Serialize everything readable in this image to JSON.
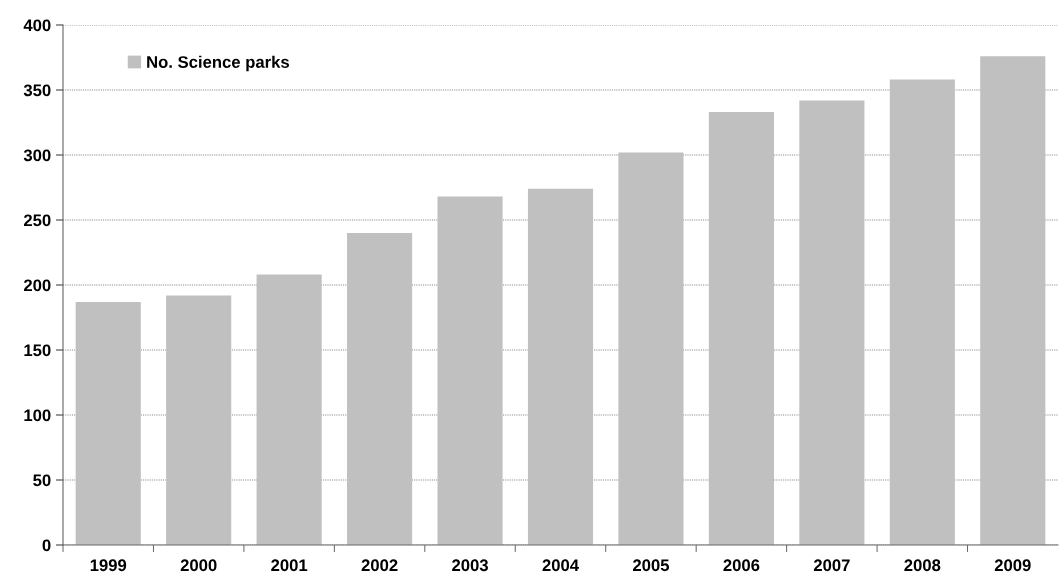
{
  "chart_data": {
    "type": "bar",
    "categories": [
      "1999",
      "2000",
      "2001",
      "2002",
      "2003",
      "2004",
      "2005",
      "2006",
      "2007",
      "2008",
      "2009"
    ],
    "series": [
      {
        "name": "No. Science parks",
        "color": "#c0c0c0",
        "values": [
          187,
          192,
          208,
          240,
          268,
          274,
          302,
          333,
          342,
          358,
          376
        ]
      }
    ],
    "ylim": [
      0,
      400
    ],
    "yticks": [
      0,
      50,
      100,
      150,
      200,
      250,
      300,
      350,
      400
    ],
    "grid": "y",
    "legend": "top left"
  }
}
